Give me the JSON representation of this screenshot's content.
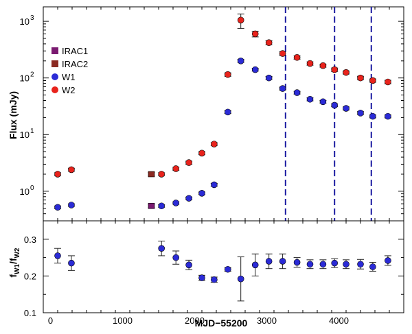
{
  "chart_data": [
    {
      "type": "scatter",
      "panel": "top",
      "ylabel": "Flux (mJy)",
      "yscale": "log",
      "xlim": [
        -100,
        4900
      ],
      "ylim": [
        0.3,
        1800
      ],
      "yticks": [
        {
          "value": 1,
          "base": "10",
          "exp": "0"
        },
        {
          "value": 10,
          "base": "10",
          "exp": "1"
        },
        {
          "value": 100,
          "base": "10",
          "exp": "2"
        },
        {
          "value": 1000,
          "base": "10",
          "exp": "3"
        }
      ],
      "legend": {
        "position": "top-left",
        "entries": [
          {
            "label": "IRAC1",
            "marker": "square",
            "color": "#7a1a70"
          },
          {
            "label": "IRAC2",
            "marker": "square",
            "color": "#8b2a22"
          },
          {
            "label": "W1",
            "marker": "circle",
            "color": "#2b2bd6"
          },
          {
            "label": "W2",
            "marker": "circle",
            "color": "#e8231c"
          }
        ]
      },
      "vlines_x": [
        3260,
        3940,
        4450
      ],
      "vline_color": "#1a1aa0",
      "series": [
        {
          "name": "W2",
          "marker": "circle",
          "color": "#e8231c",
          "x": [
            100,
            290,
            1540,
            1740,
            1920,
            2100,
            2270,
            2460,
            2640,
            2840,
            3030,
            3220,
            3420,
            3600,
            3780,
            3940,
            4100,
            4300,
            4470,
            4680
          ],
          "y": [
            2.0,
            2.4,
            2.0,
            2.5,
            3.2,
            4.7,
            6.8,
            115,
            1050,
            600,
            420,
            270,
            230,
            180,
            165,
            140,
            125,
            100,
            90,
            85
          ],
          "yerr": [
            0.12,
            0.15,
            0.12,
            0.15,
            0.2,
            0.3,
            0.4,
            8,
            300,
            70,
            35,
            20,
            15,
            12,
            10,
            10,
            8,
            7,
            6,
            6
          ]
        },
        {
          "name": "W1",
          "marker": "circle",
          "color": "#2b2bd6",
          "x": [
            100,
            290,
            1540,
            1740,
            1920,
            2100,
            2270,
            2460,
            2640,
            2840,
            3030,
            3220,
            3420,
            3600,
            3780,
            3940,
            4100,
            4300,
            4470,
            4680
          ],
          "y": [
            0.52,
            0.57,
            0.55,
            0.62,
            0.75,
            0.92,
            1.3,
            25,
            200,
            140,
            100,
            65,
            55,
            42,
            38,
            33,
            29,
            24,
            21,
            21
          ],
          "yerr": [
            0.03,
            0.03,
            0.03,
            0.03,
            0.04,
            0.05,
            0.07,
            1.5,
            12,
            8,
            6,
            4,
            3,
            2.5,
            2,
            2,
            1.8,
            1.5,
            1.3,
            1.3
          ]
        },
        {
          "name": "IRAC2",
          "marker": "square",
          "color": "#8b2a22",
          "x": [
            1400
          ],
          "y": [
            2.0
          ],
          "yerr": [
            0.15
          ]
        },
        {
          "name": "IRAC1",
          "marker": "square",
          "color": "#7a1a70",
          "x": [
            1400
          ],
          "y": [
            0.55
          ],
          "yerr": [
            0.04
          ]
        }
      ]
    },
    {
      "type": "scatter",
      "panel": "bottom",
      "xlabel": "MJD−55200",
      "ylabel_main": "f",
      "ylabel_sub1": "W1",
      "ylabel_sep": "/f",
      "ylabel_sub2": "W2",
      "xlim": [
        -100,
        4900
      ],
      "ylim": [
        0.1,
        0.35
      ],
      "xticks": [
        0,
        1000,
        2000,
        3000,
        4000
      ],
      "yticks": [
        0.1,
        0.2,
        0.3
      ],
      "series": [
        {
          "name": "W1/W2",
          "marker": "circle",
          "color": "#2b2bd6",
          "x": [
            100,
            290,
            1540,
            1740,
            1920,
            2100,
            2270,
            2460,
            2640,
            2840,
            3030,
            3220,
            3420,
            3600,
            3780,
            3940,
            4100,
            4300,
            4470,
            4680
          ],
          "y": [
            0.255,
            0.235,
            0.275,
            0.25,
            0.23,
            0.195,
            0.19,
            0.218,
            0.192,
            0.23,
            0.24,
            0.24,
            0.237,
            0.232,
            0.232,
            0.235,
            0.232,
            0.232,
            0.225,
            0.242
          ],
          "yerr": [
            0.02,
            0.02,
            0.02,
            0.018,
            0.013,
            0.007,
            0.007,
            0.005,
            0.06,
            0.03,
            0.02,
            0.02,
            0.013,
            0.012,
            0.012,
            0.012,
            0.012,
            0.013,
            0.012,
            0.013
          ]
        }
      ]
    }
  ]
}
